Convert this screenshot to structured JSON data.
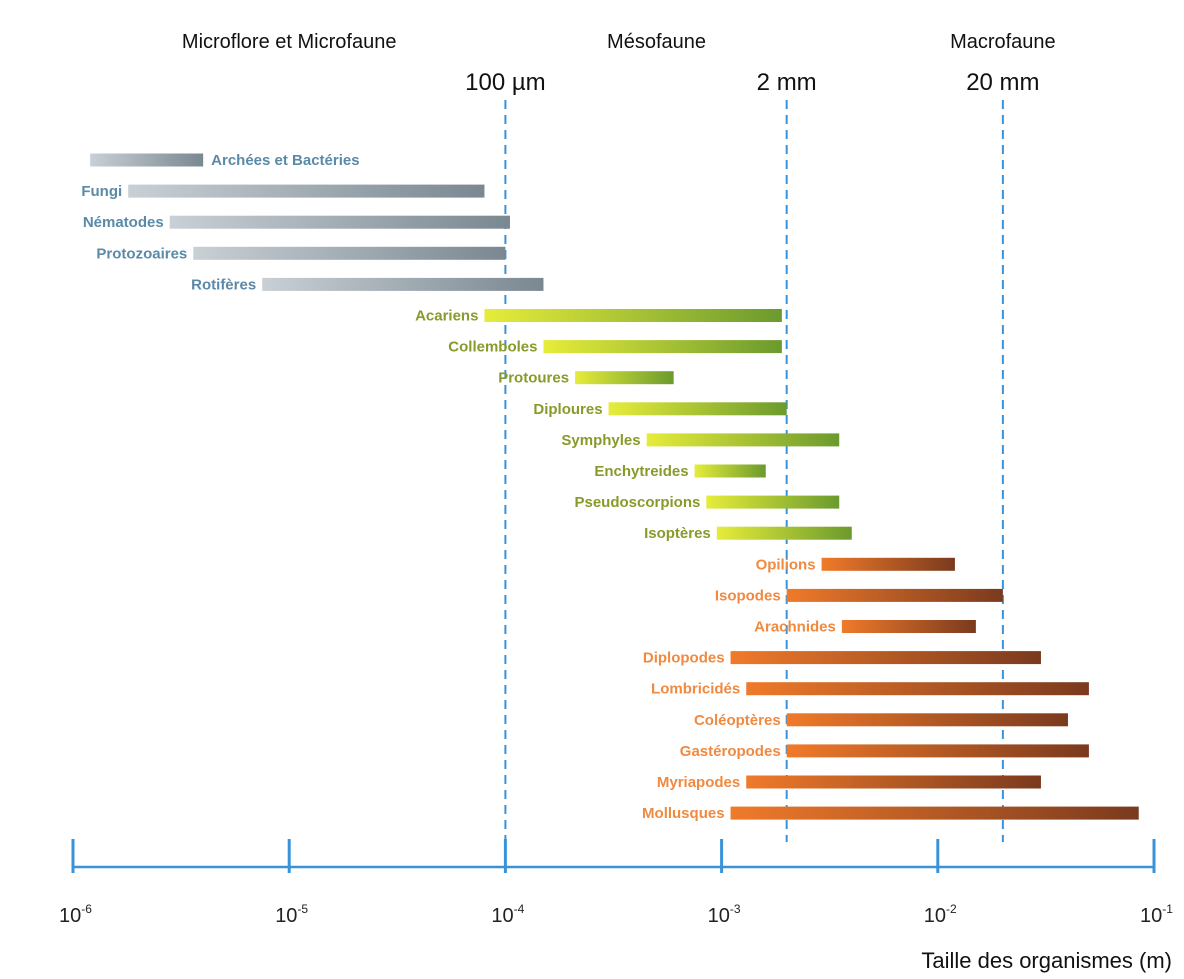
{
  "chart_data": {
    "type": "bar",
    "orientation": "horizontal",
    "x_scale": "log",
    "xlim": [
      1e-06,
      0.1
    ],
    "xlabel": "Taille des organismes (m)",
    "x_ticks": [
      {
        "value": 1e-06,
        "base": "10",
        "exp": "-6"
      },
      {
        "value": 1e-05,
        "base": "10",
        "exp": "-5"
      },
      {
        "value": 0.0001,
        "base": "10",
        "exp": "-4"
      },
      {
        "value": 0.001,
        "base": "10",
        "exp": "-3"
      },
      {
        "value": 0.01,
        "base": "10",
        "exp": "-2"
      },
      {
        "value": 0.1,
        "base": "10",
        "exp": "-1"
      }
    ],
    "size_categories": [
      {
        "label": "Microflore et Microfaune",
        "center": 1e-05
      },
      {
        "label": "Mésofaune",
        "center": 0.0005
      },
      {
        "label": "Macrofaune",
        "center": 0.02
      }
    ],
    "reference_lines": [
      {
        "label": "100 µm",
        "value": 0.0001
      },
      {
        "label": "2 mm",
        "value": 0.002
      },
      {
        "label": "20 mm",
        "value": 0.02
      }
    ],
    "groups": [
      {
        "name": "Microflore et Microfaune",
        "color": "#7a8891",
        "color_light": "#c9d0d5",
        "label_color": "#5a8aa8",
        "series": [
          {
            "name": "Archées et Bactéries",
            "min": 1.2e-06,
            "max": 4e-06,
            "label_side": "right"
          },
          {
            "name": "Fungi",
            "min": 1.8e-06,
            "max": 8e-05,
            "label_side": "left"
          },
          {
            "name": "Nématodes",
            "min": 2.8e-06,
            "max": 0.000105,
            "label_side": "left"
          },
          {
            "name": "Protozoaires",
            "min": 3.6e-06,
            "max": 0.0001,
            "label_side": "left"
          },
          {
            "name": "Rotifères",
            "min": 7.5e-06,
            "max": 0.00015,
            "label_side": "left"
          }
        ]
      },
      {
        "name": "Mésofaune",
        "color": "#6b9a2e",
        "color_light": "#e6ec3a",
        "label_color": "#8a9a2a",
        "series": [
          {
            "name": "Acariens",
            "min": 8e-05,
            "max": 0.0019,
            "label_side": "left"
          },
          {
            "name": "Collemboles",
            "min": 0.00015,
            "max": 0.0019,
            "label_side": "left"
          },
          {
            "name": "Protoures",
            "min": 0.00021,
            "max": 0.0006,
            "label_side": "left"
          },
          {
            "name": "Diploures",
            "min": 0.0003,
            "max": 0.002,
            "label_side": "left"
          },
          {
            "name": "Symphyles",
            "min": 0.00045,
            "max": 0.0035,
            "label_side": "left"
          },
          {
            "name": "Enchytreides",
            "min": 0.00075,
            "max": 0.0016,
            "label_side": "left"
          },
          {
            "name": "Pseudoscorpions",
            "min": 0.00085,
            "max": 0.0035,
            "label_side": "left"
          },
          {
            "name": "Isoptères",
            "min": 0.00095,
            "max": 0.004,
            "label_side": "left"
          }
        ]
      },
      {
        "name": "Macrofaune",
        "color": "#7a3a1e",
        "color_light": "#f07a2a",
        "label_color": "#f08a40",
        "series": [
          {
            "name": "Opilions",
            "min": 0.0029,
            "max": 0.012,
            "label_side": "left"
          },
          {
            "name": "Isopodes",
            "min": 0.002,
            "max": 0.02,
            "label_side": "left"
          },
          {
            "name": "Arachnides",
            "min": 0.0036,
            "max": 0.015,
            "label_side": "left"
          },
          {
            "name": "Diplopodes",
            "min": 0.0011,
            "max": 0.03,
            "label_side": "left"
          },
          {
            "name": "Lombricidés",
            "min": 0.0013,
            "max": 0.05,
            "label_side": "left"
          },
          {
            "name": "Coléoptères",
            "min": 0.002,
            "max": 0.04,
            "label_side": "left"
          },
          {
            "name": "Gastéropodes",
            "min": 0.002,
            "max": 0.05,
            "label_side": "left"
          },
          {
            "name": "Myriapodes",
            "min": 0.0013,
            "max": 0.03,
            "label_side": "left"
          },
          {
            "name": "Mollusques",
            "min": 0.0011,
            "max": 0.085,
            "label_side": "left"
          }
        ]
      }
    ],
    "grid": false,
    "legend": "none"
  }
}
